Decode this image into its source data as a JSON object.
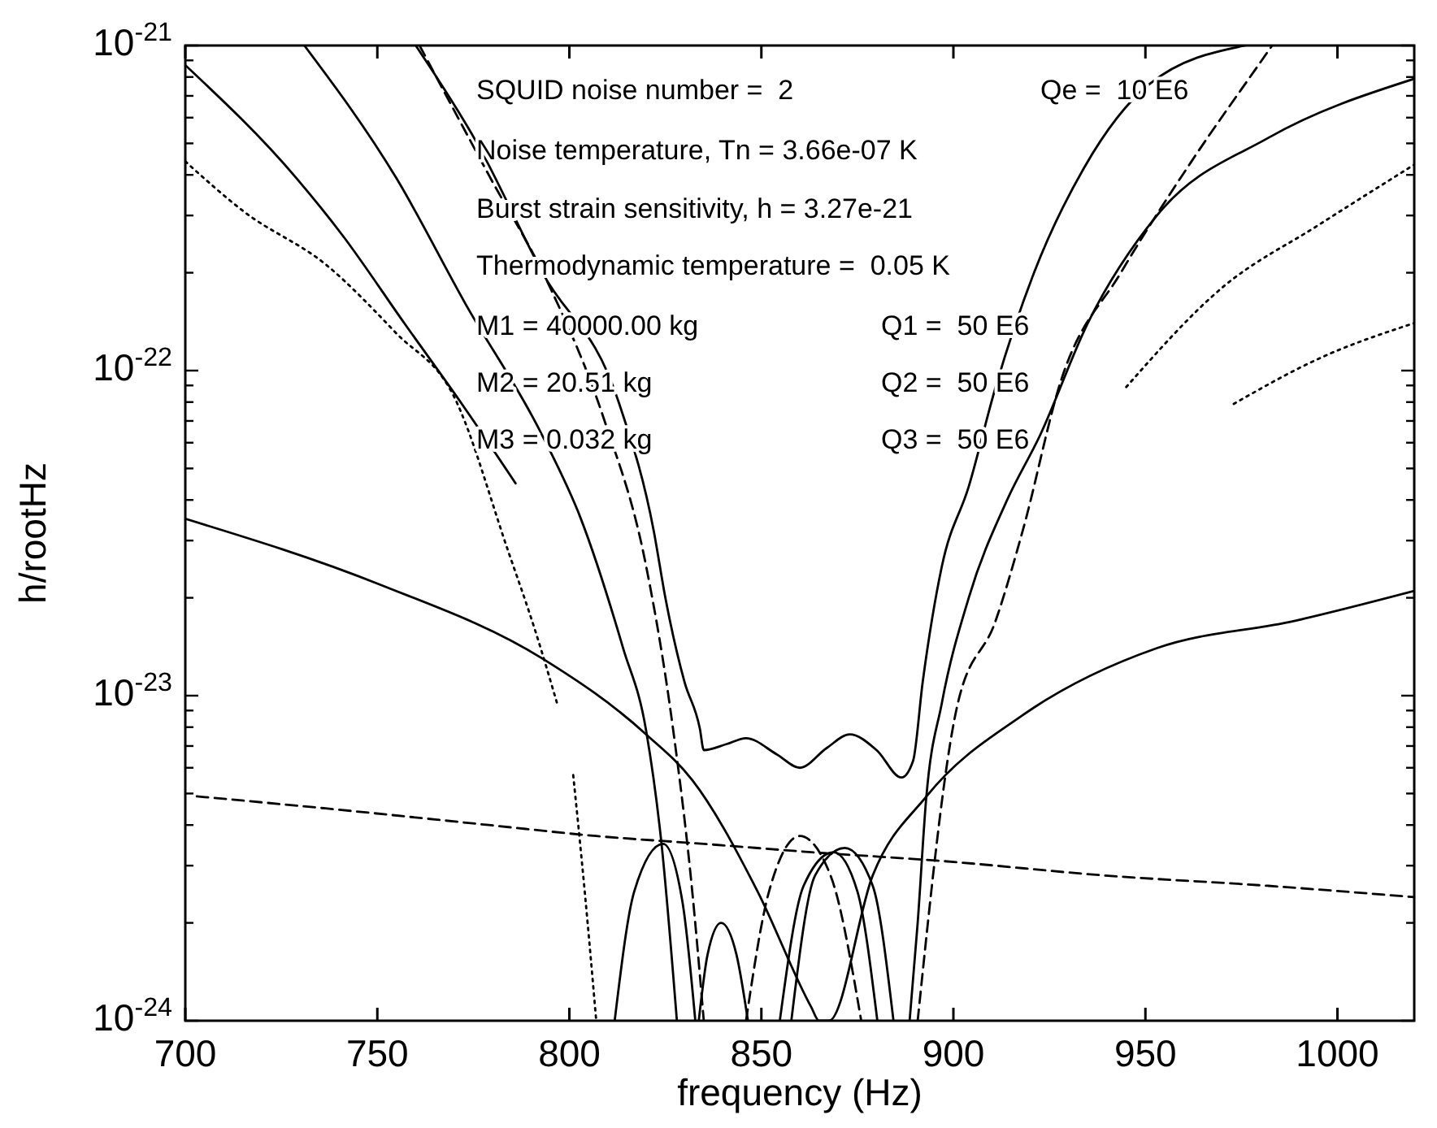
{
  "chart_data": {
    "type": "line",
    "xlabel": "frequency (Hz)",
    "ylabel": "h/rootHz",
    "log": "y",
    "xlim": [
      700,
      1020
    ],
    "xticks": [
      700,
      750,
      800,
      850,
      900,
      950,
      1000
    ],
    "ylim": [
      1e-24,
      1e-21
    ],
    "yticks": [
      {
        "value": 1e-24,
        "label": "10$^{-24}$"
      },
      {
        "value": 2e-24,
        "label": null
      },
      {
        "value": 3e-24,
        "label": null
      },
      {
        "value": 4e-24,
        "label": null
      },
      {
        "value": 5e-24,
        "label": null
      },
      {
        "value": 6e-24,
        "label": null
      },
      {
        "value": 7e-24,
        "label": null
      },
      {
        "value": 8e-24,
        "label": null
      },
      {
        "value": 9e-24,
        "label": null
      },
      {
        "value": 1e-23,
        "label": "10$^{-23}$"
      },
      {
        "value": 2e-23,
        "label": null
      },
      {
        "value": 3e-23,
        "label": null
      },
      {
        "value": 4e-23,
        "label": null
      },
      {
        "value": 5e-23,
        "label": null
      },
      {
        "value": 6e-23,
        "label": null
      },
      {
        "value": 7e-23,
        "label": null
      },
      {
        "value": 8e-23,
        "label": null
      },
      {
        "value": 9e-23,
        "label": null
      },
      {
        "value": 1e-22,
        "label": "10$^{-22}$"
      },
      {
        "value": 2e-22,
        "label": null
      },
      {
        "value": 3e-22,
        "label": null
      },
      {
        "value": 4e-22,
        "label": null
      },
      {
        "value": 5e-22,
        "label": null
      },
      {
        "value": 6e-22,
        "label": null
      },
      {
        "value": 7e-22,
        "label": null
      },
      {
        "value": 8e-22,
        "label": null
      },
      {
        "value": 9e-22,
        "label": null
      },
      {
        "value": 1e-21,
        "label": "10$^{-21}$"
      }
    ],
    "annotations": [
      "SQUID noise number =  2",
      "Qe =  10 E6",
      "Noise temperature, Tn = 3.66e-07 K",
      "Burst strain sensitivity, h = 3.27e-21",
      "Thermodynamic temperature =  0.05 K",
      "M1 = 40000.00 kg",
      "Q1 =  50 E6",
      "M2 = 20.51 kg",
      "Q2 =  50 E6",
      "M3 = 0.032 kg",
      "Q3 =  50 E6"
    ],
    "series": [
      {
        "color": "#000000",
        "line_style": "solid",
        "x": [
          760,
          776,
          793,
          813,
          822,
          825,
          830,
          834,
          835,
          841,
          846,
          854,
          860,
          867,
          873,
          880,
          886.5,
          889.5,
          892,
          897,
          904,
          911,
          921,
          934,
          951,
          976
        ],
        "values": [
          1e-21,
          5e-22,
          2e-22,
          7.9e-23,
          3.2e-23,
          2e-23,
          1.1e-23,
          7.9e-24,
          6.8e-24,
          7.1e-24,
          7.4e-24,
          6.6e-24,
          6e-24,
          6.9e-24,
          7.6e-24,
          6.8e-24,
          5.6e-24,
          6.3e-24,
          1.1e-23,
          2.5e-23,
          4.4e-23,
          8.9e-23,
          2e-22,
          4.2e-22,
          7.6e-22,
          1e-21
        ]
      },
      {
        "color": "#000000",
        "line_style": "solid",
        "x": [
          731,
          755,
          773,
          793,
          803,
          814,
          820,
          824,
          828
        ],
        "values": [
          1e-21,
          3.9e-22,
          1.6e-22,
          6.3e-23,
          3.5e-23,
          1.4e-23,
          7.8e-24,
          3.5e-24,
          1e-24
        ]
      },
      {
        "color": "#000000",
        "line_style": "solid",
        "x": [
          888.6,
          890.7,
          892.9,
          897,
          904,
          914,
          922.5,
          935,
          953,
          982,
          1020
        ],
        "values": [
          1e-24,
          2e-24,
          4.8e-24,
          9.5e-24,
          2e-23,
          4e-23,
          6.3e-23,
          1.4e-22,
          3e-22,
          5.2e-22,
          7.9e-22
        ]
      },
      {
        "color": "#000000",
        "line_style": "dashed",
        "x": [
          890.7,
          901,
          911,
          918,
          928,
          943.6,
          962,
          980,
          983
        ],
        "values": [
          1e-24,
          9.3e-24,
          1.7e-23,
          3.2e-23,
          9.3e-23,
          2e-22,
          4.4e-22,
          8.9e-22,
          1e-21
        ]
      },
      {
        "color": "#000000",
        "line_style": "dashed",
        "x": [
          761,
          779,
          795,
          809,
          820,
          827,
          832,
          835
        ],
        "values": [
          1e-21,
          4e-22,
          1.8e-22,
          7.1e-23,
          2.5e-23,
          7.9e-24,
          2.5e-24,
          1e-24
        ]
      },
      {
        "color": "#000000",
        "line_style": "solid",
        "x": [
          700,
          729,
          741,
          757,
          772,
          786
        ],
        "values": [
          8.7e-22,
          3.9e-22,
          2.6e-22,
          1.4e-22,
          7.9e-23,
          4.5e-23
        ]
      },
      {
        "color": "#000000",
        "line_style": "dotted",
        "x": [
          700,
          715,
          737,
          755,
          770,
          784,
          791,
          797
        ],
        "values": [
          4.4e-22,
          3.1e-22,
          2.1e-22,
          1.3e-22,
          8.3e-23,
          2.8e-23,
          1.6e-23,
          9.3e-24
        ]
      },
      {
        "color": "#000000",
        "line_style": "solid",
        "x": [
          700,
          750.5,
          793,
          820,
          832,
          849,
          863,
          865,
          867.6,
          879,
          893,
          918,
          953,
          989,
          1020
        ],
        "values": [
          3.5e-23,
          2.2e-23,
          1.3e-23,
          7.6e-24,
          5.5e-24,
          2.5e-24,
          1.1e-24,
          1e-24,
          1e-24,
          2.8e-24,
          4.9e-24,
          8.7e-24,
          1.4e-23,
          1.7e-23,
          2.1e-23
        ]
      },
      {
        "color": "#000000",
        "line_style": "dashed",
        "x": [
          703,
          736.5,
          779,
          807,
          835,
          863,
          897,
          939,
          982,
          1020
        ],
        "values": [
          4.9e-24,
          4.5e-24,
          4e-24,
          3.7e-24,
          3.5e-24,
          3.3e-24,
          3.1e-24,
          2.8e-24,
          2.6e-24,
          2.4e-24
        ]
      },
      {
        "color": "#000000",
        "line_style": "dotted",
        "x": [
          945,
          970,
          995,
          1020
        ],
        "values": [
          8.9e-23,
          1.8e-22,
          2.8e-22,
          4.3e-22
        ]
      },
      {
        "color": "#000000",
        "line_style": "dotted",
        "x": [
          973,
          996,
          1020
        ],
        "values": [
          7.9e-23,
          1.1e-22,
          1.4e-22
        ]
      },
      {
        "color": "#000000",
        "line_style": "solid",
        "x": [
          811.8,
          816.9,
          824.4,
          829.5,
          832.8
        ],
        "values": [
          1e-24,
          2.5e-24,
          3.5e-24,
          2.3e-24,
          1e-24
        ]
      },
      {
        "color": "#000000",
        "line_style": "solid",
        "x": [
          833.7,
          836,
          839.5,
          843.5,
          846.5
        ],
        "values": [
          1e-24,
          1.6e-24,
          2e-24,
          1.6e-24,
          1e-24
        ]
      },
      {
        "color": "#000000",
        "line_style": "solid",
        "x": [
          857.8,
          864,
          871.7,
          879,
          884.4
        ],
        "values": [
          1e-24,
          2.8e-24,
          3.4e-24,
          2.6e-24,
          1e-24
        ]
      },
      {
        "color": "#000000",
        "line_style": "dashed",
        "x": [
          846,
          852,
          860,
          868,
          876
        ],
        "values": [
          1e-24,
          2.5e-24,
          3.7e-24,
          2.8e-24,
          1e-24
        ]
      },
      {
        "color": "#000000",
        "line_style": "solid",
        "x": [
          854.8,
          861,
          868.8,
          875,
          880.2
        ],
        "values": [
          1e-24,
          2.6e-24,
          3.3e-24,
          2.5e-24,
          1e-24
        ]
      },
      {
        "color": "#000000",
        "line_style": "dotted",
        "x": [
          801,
          804,
          807
        ],
        "values": [
          5.7e-24,
          2.5e-24,
          1e-24
        ]
      }
    ]
  }
}
